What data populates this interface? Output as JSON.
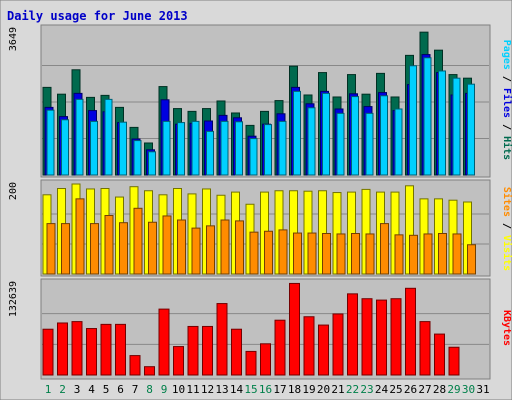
{
  "title": "Daily usage for June 2013",
  "colors": {
    "background": "#d9d9d9",
    "panel": "#c0c0c0",
    "title": "#0000c8",
    "hits": "#006a4e",
    "files": "#0000e0",
    "pages": "#00d0ff",
    "visits": "#ffff00",
    "sites": "#ff8c00",
    "kbytes": "#ff0000",
    "weekend_label": "#00804a",
    "weekday_label": "#000000"
  },
  "day_labels": [
    "1",
    "2",
    "3",
    "4",
    "5",
    "6",
    "7",
    "8",
    "9",
    "10",
    "11",
    "12",
    "13",
    "14",
    "15",
    "16",
    "17",
    "18",
    "19",
    "20",
    "21",
    "22",
    "23",
    "24",
    "25",
    "26",
    "27",
    "28",
    "29",
    "30",
    "31"
  ],
  "weekend_days": [
    1,
    2,
    8,
    9,
    15,
    16,
    22,
    23,
    29,
    30
  ],
  "chart_data": [
    {
      "type": "bar",
      "ymax_label": "3649",
      "ylim": [
        0,
        3649
      ],
      "legend": [
        {
          "name": "Hits",
          "color": "hits"
        },
        {
          "name": "Files",
          "color": "files"
        },
        {
          "name": "Pages",
          "color": "pages"
        }
      ],
      "categories": [
        "1",
        "2",
        "3",
        "4",
        "5",
        "6",
        "7",
        "8",
        "9",
        "10",
        "11",
        "12",
        "13",
        "14",
        "15",
        "16",
        "17",
        "18",
        "19",
        "20",
        "21",
        "22",
        "23",
        "24",
        "25",
        "26",
        "27",
        "28",
        "29",
        "30",
        "31"
      ],
      "series": [
        {
          "name": "Hits",
          "values": [
            2190,
            2020,
            2630,
            1940,
            1990,
            1690,
            1190,
            800,
            2210,
            1660,
            1590,
            1660,
            1850,
            1550,
            1240,
            1590,
            1860,
            2720,
            2000,
            2560,
            1950,
            2510,
            2020,
            2540,
            1950,
            2990,
            3570,
            3120,
            2510,
            2420,
            0
          ]
        },
        {
          "name": "Files",
          "values": [
            1690,
            1460,
            2040,
            1610,
            1580,
            1310,
            900,
            630,
            1880,
            1270,
            1290,
            1350,
            1490,
            1430,
            970,
            1270,
            1530,
            2190,
            1780,
            2090,
            1650,
            2030,
            1710,
            2060,
            1610,
            2260,
            3010,
            2560,
            2000,
            2040,
            0
          ]
        },
        {
          "name": "Pages",
          "values": [
            1620,
            1380,
            1890,
            1340,
            1890,
            1320,
            860,
            580,
            1340,
            1310,
            1340,
            1090,
            1340,
            1330,
            910,
            1260,
            1340,
            2090,
            1680,
            2040,
            1540,
            1960,
            1540,
            1980,
            1650,
            2730,
            2930,
            2600,
            2420,
            2270,
            0
          ]
        }
      ]
    },
    {
      "type": "bar",
      "ymax_label": "200",
      "ylim": [
        0,
        200
      ],
      "legend": [
        {
          "name": "Visits",
          "color": "visits"
        },
        {
          "name": "Sites",
          "color": "sites"
        }
      ],
      "categories": [
        "1",
        "2",
        "3",
        "4",
        "5",
        "6",
        "7",
        "8",
        "9",
        "10",
        "11",
        "12",
        "13",
        "14",
        "15",
        "16",
        "17",
        "18",
        "19",
        "20",
        "21",
        "22",
        "23",
        "24",
        "25",
        "26",
        "27",
        "28",
        "29",
        "30",
        "31"
      ],
      "series": [
        {
          "name": "Visits",
          "values": [
            176,
            190,
            200,
            189,
            190,
            171,
            194,
            185,
            176,
            190,
            178,
            189,
            175,
            182,
            155,
            182,
            185,
            185,
            184,
            185,
            181,
            182,
            188,
            182,
            182,
            196,
            167,
            167,
            164,
            160,
            0
          ]
        },
        {
          "name": "Sites",
          "values": [
            112,
            112,
            167,
            112,
            130,
            114,
            146,
            115,
            129,
            120,
            102,
            107,
            120,
            118,
            93,
            95,
            98,
            91,
            91,
            90,
            89,
            90,
            89,
            112,
            87,
            86,
            89,
            90,
            89,
            65,
            0
          ]
        }
      ]
    },
    {
      "type": "bar",
      "ymax_label": "132639",
      "ylim": [
        0,
        132639
      ],
      "legend": [
        {
          "name": "KBytes",
          "color": "kbytes"
        }
      ],
      "categories": [
        "1",
        "2",
        "3",
        "4",
        "5",
        "6",
        "7",
        "8",
        "9",
        "10",
        "11",
        "12",
        "13",
        "14",
        "15",
        "16",
        "17",
        "18",
        "19",
        "20",
        "21",
        "22",
        "23",
        "24",
        "25",
        "26",
        "27",
        "28",
        "29",
        "30",
        "31"
      ],
      "series": [
        {
          "name": "KBytes",
          "values": [
            66000,
            75000,
            77000,
            67000,
            73000,
            73000,
            28000,
            12000,
            95000,
            41000,
            70000,
            70000,
            103000,
            66000,
            34000,
            45000,
            79000,
            132000,
            84000,
            72000,
            88000,
            117000,
            110000,
            108000,
            110000,
            125000,
            77000,
            59000,
            40000,
            0,
            0
          ]
        }
      ]
    }
  ]
}
